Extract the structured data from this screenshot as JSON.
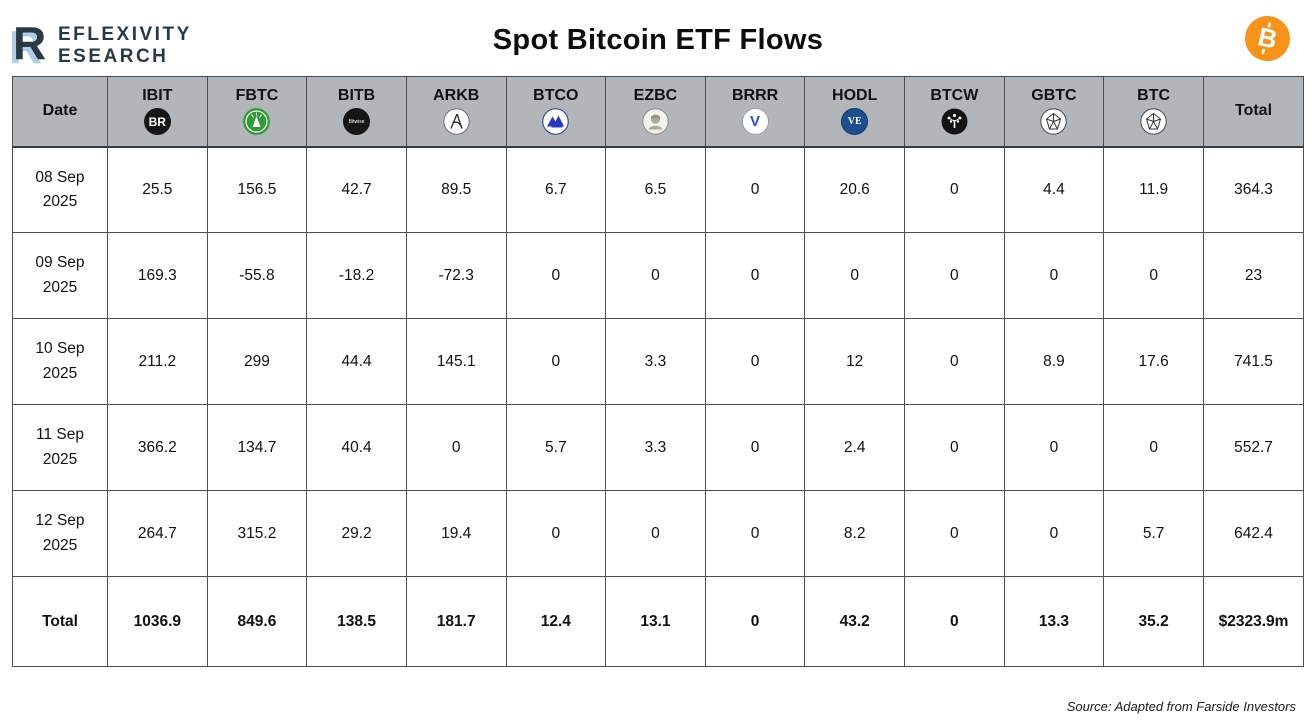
{
  "brand": {
    "letter": "R",
    "line1": "EFLEXIVITY",
    "line2": "ESEARCH"
  },
  "header": {
    "title": "Spot Bitcoin ETF Flows",
    "bitcoin_icon": "bitcoin-icon",
    "bitcoin_color": "#f7931a"
  },
  "colors": {
    "header_bg": "#b3b6b9",
    "border": "#4d4e50",
    "accent_orange": "#f7931a",
    "logo_dark": "#2b3943",
    "logo_light_blue": "#aecde9"
  },
  "chart_data": {
    "type": "table",
    "title": "Spot Bitcoin ETF Flows",
    "unit": "millions USD",
    "columns": [
      "Date",
      "IBIT",
      "FBTC",
      "BITB",
      "ARKB",
      "BTCO",
      "EZBC",
      "BRRR",
      "HODL",
      "BTCW",
      "GBTC",
      "BTC",
      "Total"
    ],
    "rows": [
      [
        "08 Sep 2025",
        25.5,
        156.5,
        42.7,
        89.5,
        6.7,
        6.5,
        0,
        20.6,
        0,
        4.4,
        11.9,
        364.3
      ],
      [
        "09 Sep 2025",
        169.3,
        -55.8,
        -18.2,
        -72.3,
        0,
        0,
        0,
        0,
        0,
        0,
        0,
        23
      ],
      [
        "10 Sep 2025",
        211.2,
        299,
        44.4,
        145.1,
        0,
        3.3,
        0,
        12,
        0,
        8.9,
        17.6,
        741.5
      ],
      [
        "11 Sep 2025",
        366.2,
        134.7,
        40.4,
        0,
        5.7,
        3.3,
        0,
        2.4,
        0,
        0,
        0,
        552.7
      ],
      [
        "12 Sep 2025",
        264.7,
        315.2,
        29.2,
        19.4,
        0,
        0,
        0,
        8.2,
        0,
        0,
        5.7,
        642.4
      ]
    ],
    "totals": [
      "Total",
      1036.9,
      849.6,
      138.5,
      181.7,
      12.4,
      13.1,
      0,
      43.2,
      0,
      13.3,
      35.2,
      "$2323.9m"
    ]
  },
  "table": {
    "columns": [
      {
        "label": "Date",
        "icon": null
      },
      {
        "label": "IBIT",
        "icon": "blackrock-icon",
        "icon_text": "BR"
      },
      {
        "label": "FBTC",
        "icon": "fidelity-icon"
      },
      {
        "label": "BITB",
        "icon": "bitwise-icon",
        "icon_text": "Bitwise"
      },
      {
        "label": "ARKB",
        "icon": "ark-icon"
      },
      {
        "label": "BTCO",
        "icon": "invesco-icon"
      },
      {
        "label": "EZBC",
        "icon": "franklin-icon"
      },
      {
        "label": "BRRR",
        "icon": "valkyrie-icon",
        "icon_text": "V"
      },
      {
        "label": "HODL",
        "icon": "vaneck-icon",
        "icon_text": "VE"
      },
      {
        "label": "BTCW",
        "icon": "wisdomtree-icon"
      },
      {
        "label": "GBTC",
        "icon": "grayscale-icon"
      },
      {
        "label": "BTC",
        "icon": "grayscale-icon"
      },
      {
        "label": "Total",
        "icon": null
      }
    ],
    "rows": [
      {
        "date": "08 Sep 2025",
        "values": [
          "25.5",
          "156.5",
          "42.7",
          "89.5",
          "6.7",
          "6.5",
          "0",
          "20.6",
          "0",
          "4.4",
          "11.9",
          "364.3"
        ]
      },
      {
        "date": "09 Sep 2025",
        "values": [
          "169.3",
          "-55.8",
          "-18.2",
          "-72.3",
          "0",
          "0",
          "0",
          "0",
          "0",
          "0",
          "0",
          "23"
        ]
      },
      {
        "date": "10 Sep 2025",
        "values": [
          "211.2",
          "299",
          "44.4",
          "145.1",
          "0",
          "3.3",
          "0",
          "12",
          "0",
          "8.9",
          "17.6",
          "741.5"
        ]
      },
      {
        "date": "11 Sep 2025",
        "values": [
          "366.2",
          "134.7",
          "40.4",
          "0",
          "5.7",
          "3.3",
          "0",
          "2.4",
          "0",
          "0",
          "0",
          "552.7"
        ]
      },
      {
        "date": "12 Sep 2025",
        "values": [
          "264.7",
          "315.2",
          "29.2",
          "19.4",
          "0",
          "0",
          "0",
          "8.2",
          "0",
          "0",
          "5.7",
          "642.4"
        ]
      }
    ],
    "total_row": {
      "label": "Total",
      "values": [
        "1036.9",
        "849.6",
        "138.5",
        "181.7",
        "12.4",
        "13.1",
        "0",
        "43.2",
        "0",
        "13.3",
        "35.2",
        "$2323.9m"
      ]
    }
  },
  "footer": {
    "source": "Source: Adapted from Farside Investors"
  }
}
